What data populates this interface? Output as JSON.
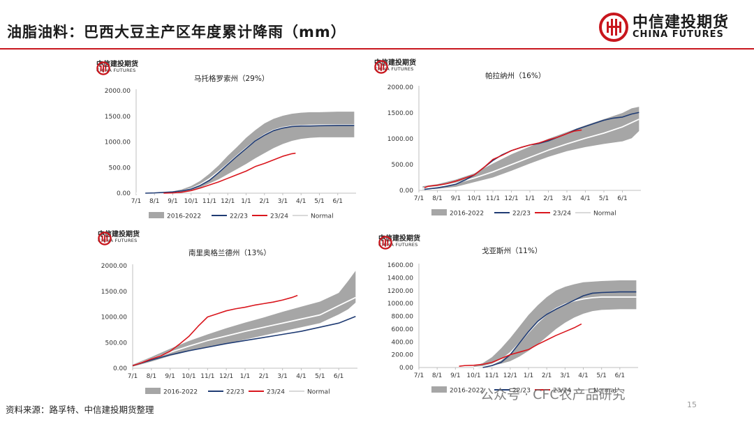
{
  "page": {
    "title": "油脂油料：巴西大豆主产区年度累计降雨（mm）",
    "brand_cn": "中信建投期货",
    "brand_en": "CHINA FUTURES",
    "mini_logo_cn": "中信建投期货",
    "mini_logo_en": "CHINA FUTURES",
    "source": "资料来源：路孚特、中信建投期货整理",
    "watermark": "公众号 · CFC农产品研究",
    "page_number": "15"
  },
  "colors": {
    "band": "#a6a6a6",
    "series_2223": "#1f3b73",
    "series_2324": "#d9161d",
    "normal": "#ffffff",
    "accent_red": "#c8161d"
  },
  "chart_data": [
    {
      "type": "area",
      "title": "马托格罗索州（29%）",
      "x_ticks": [
        "7/1",
        "8/1",
        "9/1",
        "10/1",
        "11/1",
        "12/1",
        "1/1",
        "2/1",
        "3/1",
        "4/1",
        "5/1",
        "6/1"
      ],
      "x_range": [
        0,
        12
      ],
      "ylim": [
        0,
        2000
      ],
      "y_ticks": [
        "0.00",
        "500.00",
        "1000.00",
        "1500.00",
        "2000.00"
      ],
      "legend": [
        "2016-2022",
        "22/23",
        "23/24",
        "Normal"
      ],
      "band": {
        "x": [
          0,
          1,
          1.5,
          2,
          2.5,
          3,
          3.5,
          4,
          4.5,
          5,
          5.5,
          6,
          6.5,
          7,
          7.5,
          8,
          8.5,
          9,
          9.5,
          10,
          11,
          11.9
        ],
        "lower": [
          0,
          0,
          2,
          10,
          25,
          60,
          110,
          190,
          270,
          370,
          470,
          570,
          680,
          780,
          880,
          960,
          1020,
          1060,
          1080,
          1090,
          1090,
          1090
        ],
        "upper": [
          0,
          5,
          15,
          35,
          75,
          140,
          240,
          380,
          540,
          730,
          900,
          1080,
          1230,
          1360,
          1450,
          1510,
          1550,
          1570,
          1580,
          1580,
          1590,
          1590
        ]
      },
      "series": [
        {
          "name": "22/23",
          "x": [
            0.5,
            1,
            1.5,
            2,
            2.5,
            3,
            3.5,
            4,
            4.5,
            5,
            5.5,
            6,
            6.5,
            7,
            7.5,
            8,
            8.5,
            9,
            9.5,
            10,
            11,
            11.9
          ],
          "values": [
            0,
            5,
            15,
            25,
            45,
            80,
            150,
            250,
            400,
            560,
            720,
            870,
            1020,
            1130,
            1220,
            1270,
            1300,
            1310,
            1310,
            1315,
            1320,
            1320
          ]
        },
        {
          "name": "23/24",
          "x": [
            1.5,
            2,
            2.5,
            3,
            3.5,
            4,
            4.5,
            5,
            5.5,
            6,
            6.5,
            7,
            7.5,
            8,
            8.5,
            8.7
          ],
          "values": [
            0,
            5,
            20,
            50,
            100,
            160,
            220,
            290,
            360,
            430,
            520,
            580,
            650,
            720,
            770,
            780
          ]
        },
        {
          "name": "Normal",
          "x": [
            0,
            1,
            1.5,
            2,
            2.5,
            3,
            3.5,
            4,
            4.5,
            5,
            5.5,
            6,
            6.5,
            7,
            7.5,
            8,
            8.5,
            9,
            9.5,
            10,
            11,
            11.9
          ],
          "values": [
            0,
            3,
            8,
            20,
            45,
            90,
            170,
            280,
            420,
            570,
            730,
            880,
            1020,
            1140,
            1230,
            1280,
            1310,
            1320,
            1325,
            1330,
            1330,
            1330
          ]
        }
      ]
    },
    {
      "type": "area",
      "title": "帕拉纳州（16%）",
      "x_ticks": [
        "7/1",
        "8/1",
        "9/1",
        "10/1",
        "11/1",
        "12/1",
        "1/1",
        "2/1",
        "3/1",
        "4/1",
        "5/1",
        "6/1"
      ],
      "x_range": [
        0,
        12
      ],
      "ylim": [
        0,
        2000
      ],
      "y_ticks": [
        "0.00",
        "500.00",
        "1000.00",
        "1500.00",
        "2000.00"
      ],
      "legend": [
        "2016-2022",
        "22/23",
        "23/24",
        "Normal"
      ],
      "band": {
        "x": [
          0.2,
          1,
          2,
          3,
          4,
          5,
          6,
          7,
          8,
          9,
          10,
          11,
          11.5,
          11.9
        ],
        "lower": [
          20,
          30,
          70,
          160,
          250,
          380,
          520,
          650,
          760,
          840,
          900,
          950,
          1010,
          1150
        ],
        "upper": [
          80,
          120,
          210,
          330,
          520,
          700,
          850,
          1000,
          1130,
          1260,
          1380,
          1500,
          1590,
          1620
        ]
      },
      "series": [
        {
          "name": "22/23",
          "x": [
            0.3,
            1,
            1.5,
            2,
            2.5,
            3,
            3.5,
            4,
            4.5,
            5,
            5.5,
            6,
            6.5,
            7,
            7.5,
            8,
            8.5,
            9,
            9.5,
            10,
            10.5,
            11,
            11.5,
            11.9
          ],
          "values": [
            20,
            50,
            80,
            120,
            200,
            300,
            440,
            580,
            690,
            770,
            830,
            880,
            910,
            960,
            1030,
            1100,
            1180,
            1240,
            1300,
            1360,
            1400,
            1420,
            1480,
            1510
          ]
        },
        {
          "name": "23/24",
          "x": [
            0.3,
            0.5,
            1,
            1.5,
            2,
            2.5,
            3,
            3.5,
            4,
            4.5,
            5,
            5.5,
            6,
            6.5,
            7,
            7.5,
            8,
            8.4,
            8.8
          ],
          "values": [
            50,
            80,
            100,
            130,
            180,
            240,
            300,
            440,
            600,
            680,
            770,
            830,
            880,
            920,
            980,
            1030,
            1100,
            1150,
            1170
          ]
        },
        {
          "name": "Normal",
          "x": [
            0.2,
            1,
            2,
            3,
            4,
            5,
            6,
            7,
            8,
            9,
            10,
            11,
            11.9
          ],
          "values": [
            40,
            70,
            140,
            240,
            360,
            500,
            640,
            780,
            900,
            1010,
            1110,
            1230,
            1380
          ]
        }
      ]
    },
    {
      "type": "area",
      "title": "南里奥格兰德州（13%）",
      "x_ticks": [
        "7/1",
        "8/1",
        "9/1",
        "10/1",
        "11/1",
        "12/1",
        "1/1",
        "2/1",
        "3/1",
        "4/1",
        "5/1",
        "6/1"
      ],
      "x_range": [
        0,
        12
      ],
      "ylim": [
        0,
        2000
      ],
      "y_ticks": [
        "0.00",
        "500.00",
        "1000.00",
        "1500.00",
        "2000.00"
      ],
      "legend": [
        "2016-2022",
        "22/23",
        "23/24",
        "Normal"
      ],
      "band": {
        "x": [
          0,
          1,
          2,
          3,
          4,
          5,
          6,
          7,
          8,
          9,
          10,
          11,
          11.5,
          11.9
        ],
        "lower": [
          30,
          130,
          240,
          330,
          410,
          480,
          560,
          640,
          720,
          800,
          880,
          1050,
          1150,
          1280
        ],
        "upper": [
          70,
          220,
          380,
          530,
          660,
          780,
          890,
          990,
          1100,
          1200,
          1300,
          1470,
          1700,
          1900
        ]
      },
      "series": [
        {
          "name": "22/23",
          "x": [
            0,
            1,
            2,
            3,
            4,
            5,
            6,
            7,
            8,
            9,
            10,
            11,
            11.9
          ],
          "values": [
            50,
            160,
            260,
            340,
            410,
            480,
            540,
            600,
            660,
            720,
            800,
            880,
            1010
          ]
        },
        {
          "name": "23/24",
          "x": [
            0,
            0.5,
            1,
            1.5,
            2,
            2.5,
            3,
            3.5,
            4,
            4.5,
            5,
            5.5,
            6,
            6.5,
            7,
            7.5,
            8,
            8.5,
            8.8
          ],
          "values": [
            50,
            110,
            180,
            240,
            330,
            470,
            620,
            820,
            1000,
            1060,
            1120,
            1160,
            1190,
            1230,
            1260,
            1290,
            1330,
            1380,
            1420
          ]
        },
        {
          "name": "Normal",
          "x": [
            0,
            1,
            2,
            3,
            4,
            5,
            6,
            7,
            8,
            9,
            10,
            11,
            11.9
          ],
          "values": [
            50,
            180,
            310,
            430,
            540,
            630,
            720,
            800,
            880,
            960,
            1040,
            1220,
            1380
          ]
        }
      ]
    },
    {
      "type": "area",
      "title": "戈亚斯州（11%）",
      "x_ticks": [
        "7/1",
        "8/1",
        "9/1",
        "10/1",
        "11/1",
        "12/1",
        "1/1",
        "2/1",
        "3/1",
        "4/1",
        "5/1",
        "6/1"
      ],
      "x_range": [
        0,
        12
      ],
      "ylim": [
        0,
        1600
      ],
      "y_ticks": [
        "0.00",
        "200.00",
        "400.00",
        "600.00",
        "800.00",
        "1000.00",
        "1200.00",
        "1400.00",
        "1600.00"
      ],
      "legend": [
        "2016-2022",
        "22/23",
        "23/24",
        "Normal"
      ],
      "band": {
        "x": [
          3,
          3.5,
          4,
          4.5,
          5,
          5.5,
          6,
          6.5,
          7,
          7.5,
          8,
          8.5,
          9,
          9.5,
          10,
          11,
          11.9
        ],
        "lower": [
          0,
          10,
          30,
          60,
          100,
          170,
          260,
          360,
          480,
          600,
          700,
          780,
          840,
          880,
          900,
          910,
          910
        ],
        "upper": [
          20,
          70,
          160,
          300,
          460,
          640,
          820,
          970,
          1100,
          1200,
          1260,
          1300,
          1330,
          1340,
          1350,
          1360,
          1360
        ]
      },
      "series": [
        {
          "name": "22/23",
          "x": [
            3.5,
            4,
            4.5,
            5,
            5.5,
            6,
            6.5,
            7,
            7.5,
            8,
            8.5,
            9,
            9.5,
            10,
            11,
            11.9
          ],
          "values": [
            0,
            30,
            80,
            200,
            380,
            560,
            720,
            830,
            910,
            980,
            1050,
            1120,
            1160,
            1170,
            1180,
            1180
          ]
        },
        {
          "name": "23/24",
          "x": [
            2.2,
            2.5,
            3,
            3.5,
            4,
            4.5,
            5,
            5.5,
            6,
            6.5,
            7,
            7.5,
            8,
            8.5,
            8.9
          ],
          "values": [
            20,
            30,
            35,
            50,
            80,
            140,
            200,
            240,
            280,
            360,
            430,
            500,
            560,
            620,
            680
          ]
        },
        {
          "name": "Normal",
          "x": [
            3,
            3.5,
            4,
            4.5,
            5,
            5.5,
            6,
            6.5,
            7,
            7.5,
            8,
            8.5,
            9,
            9.5,
            10,
            11,
            11.9
          ],
          "values": [
            0,
            15,
            50,
            120,
            230,
            380,
            550,
            700,
            830,
            920,
            990,
            1040,
            1070,
            1090,
            1100,
            1100,
            1100
          ]
        }
      ]
    }
  ]
}
